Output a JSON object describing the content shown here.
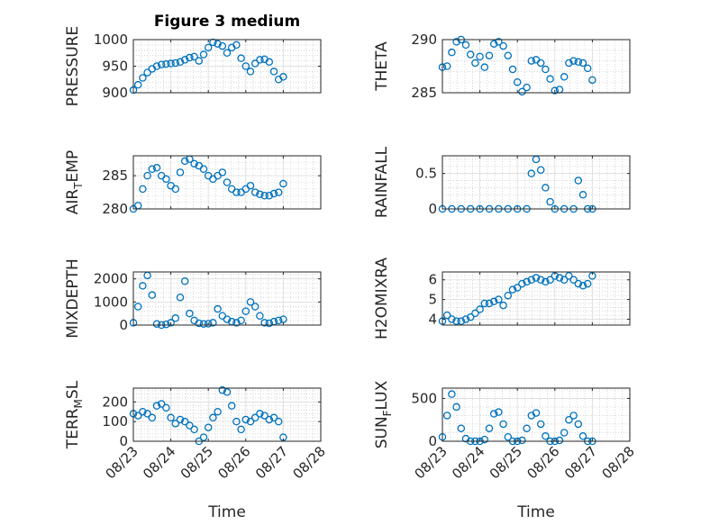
{
  "title": "Figure 3 medium",
  "xlabel": "Time",
  "x_ticks": [
    "08/23",
    "08/24",
    "08/25",
    "08/26",
    "08/27",
    "08/28"
  ],
  "colors": {
    "series": "#0072BD",
    "axis": "#262626",
    "grid": "#bfbfbf"
  },
  "chart_data": [
    {
      "type": "scatter",
      "ylabel": "PRESSURE",
      "ylim": [
        900,
        1000
      ],
      "yticks": [
        900,
        950,
        1000
      ],
      "xlim": [
        "08/23",
        "08/28"
      ],
      "grid": true,
      "x": [
        "08/23 00:00",
        "08/23 03:00",
        "08/23 06:00",
        "08/23 09:00",
        "08/23 12:00",
        "08/23 15:00",
        "08/23 18:00",
        "08/23 21:00",
        "08/24 00:00",
        "08/24 03:00",
        "08/24 06:00",
        "08/24 09:00",
        "08/24 12:00",
        "08/24 15:00",
        "08/24 18:00",
        "08/24 21:00",
        "08/25 00:00",
        "08/25 03:00",
        "08/25 06:00",
        "08/25 09:00",
        "08/25 12:00",
        "08/25 15:00",
        "08/25 18:00",
        "08/25 21:00",
        "08/26 00:00",
        "08/26 03:00",
        "08/26 06:00",
        "08/26 09:00",
        "08/26 12:00",
        "08/26 15:00",
        "08/26 18:00",
        "08/26 21:00",
        "08/27 00:00"
      ],
      "y": [
        905,
        915,
        928,
        938,
        945,
        950,
        953,
        954,
        955,
        956,
        958,
        962,
        966,
        968,
        960,
        972,
        985,
        995,
        992,
        988,
        975,
        985,
        990,
        965,
        950,
        940,
        955,
        962,
        963,
        958,
        940,
        925,
        930
      ]
    },
    {
      "type": "scatter",
      "ylabel": "THETA",
      "ylim": [
        285,
        290
      ],
      "yticks": [
        285,
        290
      ],
      "xlim": [
        "08/23",
        "08/28"
      ],
      "grid": true,
      "x": [
        "08/23 00:00",
        "08/23 03:00",
        "08/23 06:00",
        "08/23 09:00",
        "08/23 12:00",
        "08/23 15:00",
        "08/23 18:00",
        "08/23 21:00",
        "08/24 00:00",
        "08/24 03:00",
        "08/24 06:00",
        "08/24 09:00",
        "08/24 12:00",
        "08/24 15:00",
        "08/24 18:00",
        "08/24 21:00",
        "08/25 00:00",
        "08/25 03:00",
        "08/25 06:00",
        "08/25 09:00",
        "08/25 12:00",
        "08/25 15:00",
        "08/25 18:00",
        "08/25 21:00",
        "08/26 00:00",
        "08/26 03:00",
        "08/26 06:00",
        "08/26 09:00",
        "08/26 12:00",
        "08/26 15:00",
        "08/26 18:00",
        "08/26 21:00",
        "08/27 00:00"
      ],
      "y": [
        287.4,
        287.5,
        288.8,
        289.8,
        290,
        289.5,
        288.6,
        287.8,
        288.4,
        287.4,
        288.5,
        289.6,
        289.8,
        289.4,
        288.5,
        287.2,
        286,
        285.1,
        285.5,
        288,
        288.1,
        287.8,
        287.2,
        286.3,
        285.2,
        285.3,
        286.5,
        287.8,
        288,
        287.9,
        287.8,
        287.3,
        286.2
      ]
    },
    {
      "type": "scatter",
      "ylabel": "AIR_TEMP",
      "ylim": [
        280,
        288
      ],
      "yticks": [
        280,
        285
      ],
      "xlim": [
        "08/23",
        "08/28"
      ],
      "grid": true,
      "x": [
        "08/23 00:00",
        "08/23 03:00",
        "08/23 06:00",
        "08/23 09:00",
        "08/23 12:00",
        "08/23 15:00",
        "08/23 18:00",
        "08/23 21:00",
        "08/24 00:00",
        "08/24 03:00",
        "08/24 06:00",
        "08/24 09:00",
        "08/24 12:00",
        "08/24 15:00",
        "08/24 18:00",
        "08/24 21:00",
        "08/25 00:00",
        "08/25 03:00",
        "08/25 06:00",
        "08/25 09:00",
        "08/25 12:00",
        "08/25 15:00",
        "08/25 18:00",
        "08/25 21:00",
        "08/26 00:00",
        "08/26 03:00",
        "08/26 06:00",
        "08/26 09:00",
        "08/26 12:00",
        "08/26 15:00",
        "08/26 18:00",
        "08/26 21:00",
        "08/27 00:00"
      ],
      "y": [
        280,
        280.5,
        283,
        285,
        286,
        286.2,
        285,
        284.5,
        283.5,
        283,
        285.5,
        287.2,
        287.5,
        286.8,
        286.5,
        286,
        285,
        284.5,
        285,
        285.5,
        284,
        283,
        282.5,
        282.5,
        283,
        283.5,
        282.5,
        282.2,
        282,
        282,
        282.3,
        282.5,
        283.8
      ]
    },
    {
      "type": "scatter",
      "ylabel": "RAINFALL",
      "ylim": [
        0,
        0.75
      ],
      "yticks": [
        0,
        0.5
      ],
      "xlim": [
        "08/23",
        "08/28"
      ],
      "grid": true,
      "x": [
        "08/23 00:00",
        "08/23 06:00",
        "08/23 12:00",
        "08/23 18:00",
        "08/24 00:00",
        "08/24 06:00",
        "08/24 12:00",
        "08/24 18:00",
        "08/25 00:00",
        "08/25 06:00",
        "08/25 09:00",
        "08/25 12:00",
        "08/25 15:00",
        "08/25 18:00",
        "08/25 21:00",
        "08/26 00:00",
        "08/26 06:00",
        "08/26 12:00",
        "08/26 15:00",
        "08/26 18:00",
        "08/26 21:00",
        "08/27 00:00"
      ],
      "y": [
        0,
        0,
        0,
        0,
        0,
        0,
        0,
        0,
        0,
        0,
        0.5,
        0.7,
        0.55,
        0.3,
        0.1,
        0,
        0,
        0,
        0.4,
        0.2,
        0,
        0
      ]
    },
    {
      "type": "scatter",
      "ylabel": "MIXDEPTH",
      "ylim": [
        0,
        2300
      ],
      "yticks": [
        0,
        1000,
        2000
      ],
      "xlim": [
        "08/23",
        "08/28"
      ],
      "grid": true,
      "x": [
        "08/23 00:00",
        "08/23 03:00",
        "08/23 06:00",
        "08/23 09:00",
        "08/23 12:00",
        "08/23 15:00",
        "08/23 18:00",
        "08/23 21:00",
        "08/24 00:00",
        "08/24 03:00",
        "08/24 06:00",
        "08/24 09:00",
        "08/24 12:00",
        "08/24 15:00",
        "08/24 18:00",
        "08/24 21:00",
        "08/25 00:00",
        "08/25 03:00",
        "08/25 06:00",
        "08/25 09:00",
        "08/25 12:00",
        "08/25 15:00",
        "08/25 18:00",
        "08/25 21:00",
        "08/26 00:00",
        "08/26 03:00",
        "08/26 06:00",
        "08/26 09:00",
        "08/26 12:00",
        "08/26 15:00",
        "08/26 18:00",
        "08/26 21:00",
        "08/27 00:00"
      ],
      "y": [
        100,
        800,
        1700,
        2150,
        1300,
        50,
        0,
        30,
        100,
        300,
        1200,
        1900,
        500,
        200,
        80,
        50,
        60,
        100,
        700,
        400,
        250,
        150,
        100,
        200,
        600,
        1000,
        800,
        400,
        100,
        80,
        150,
        200,
        250
      ]
    },
    {
      "type": "scatter",
      "ylabel": "H2OMIXRA",
      "ylim": [
        3.7,
        6.4
      ],
      "yticks": [
        4,
        5,
        6
      ],
      "xlim": [
        "08/23",
        "08/28"
      ],
      "grid": true,
      "x": [
        "08/23 00:00",
        "08/23 03:00",
        "08/23 06:00",
        "08/23 09:00",
        "08/23 12:00",
        "08/23 15:00",
        "08/23 18:00",
        "08/23 21:00",
        "08/24 00:00",
        "08/24 03:00",
        "08/24 06:00",
        "08/24 09:00",
        "08/24 12:00",
        "08/24 15:00",
        "08/24 18:00",
        "08/24 21:00",
        "08/25 00:00",
        "08/25 03:00",
        "08/25 06:00",
        "08/25 09:00",
        "08/25 12:00",
        "08/25 15:00",
        "08/25 18:00",
        "08/25 21:00",
        "08/26 00:00",
        "08/26 03:00",
        "08/26 06:00",
        "08/26 09:00",
        "08/26 12:00",
        "08/26 15:00",
        "08/26 18:00",
        "08/26 21:00",
        "08/27 00:00"
      ],
      "y": [
        3.9,
        4.2,
        4,
        3.9,
        3.9,
        4,
        4.1,
        4.3,
        4.5,
        4.8,
        4.8,
        4.9,
        5,
        4.7,
        5.2,
        5.5,
        5.6,
        5.8,
        5.9,
        6,
        6.1,
        6,
        5.9,
        6,
        6.2,
        6.1,
        6,
        6.2,
        6,
        5.8,
        5.7,
        5.8,
        6.2
      ]
    },
    {
      "type": "scatter",
      "ylabel": "TERR_MSL",
      "ylim": [
        0,
        270
      ],
      "yticks": [
        0,
        100,
        200
      ],
      "xlim": [
        "08/23",
        "08/28"
      ],
      "grid": true,
      "x": [
        "08/23 00:00",
        "08/23 03:00",
        "08/23 06:00",
        "08/23 09:00",
        "08/23 12:00",
        "08/23 15:00",
        "08/23 18:00",
        "08/23 21:00",
        "08/24 00:00",
        "08/24 03:00",
        "08/24 06:00",
        "08/24 09:00",
        "08/24 12:00",
        "08/24 15:00",
        "08/24 18:00",
        "08/24 21:00",
        "08/25 00:00",
        "08/25 03:00",
        "08/25 06:00",
        "08/25 09:00",
        "08/25 12:00",
        "08/25 15:00",
        "08/25 18:00",
        "08/25 21:00",
        "08/26 00:00",
        "08/26 03:00",
        "08/26 06:00",
        "08/26 09:00",
        "08/26 12:00",
        "08/26 15:00",
        "08/26 18:00",
        "08/26 21:00",
        "08/27 00:00"
      ],
      "y": [
        140,
        130,
        150,
        140,
        120,
        180,
        190,
        170,
        120,
        90,
        110,
        100,
        80,
        60,
        0,
        20,
        70,
        120,
        150,
        260,
        250,
        180,
        100,
        60,
        110,
        100,
        120,
        140,
        130,
        110,
        120,
        100,
        20
      ]
    },
    {
      "type": "scatter",
      "ylabel": "SUN_FLUX",
      "ylim": [
        0,
        620
      ],
      "yticks": [
        0,
        500
      ],
      "xlim": [
        "08/23",
        "08/28"
      ],
      "grid": true,
      "x": [
        "08/23 00:00",
        "08/23 03:00",
        "08/23 06:00",
        "08/23 09:00",
        "08/23 12:00",
        "08/23 15:00",
        "08/23 18:00",
        "08/23 21:00",
        "08/24 00:00",
        "08/24 03:00",
        "08/24 06:00",
        "08/24 09:00",
        "08/24 12:00",
        "08/24 15:00",
        "08/24 18:00",
        "08/24 21:00",
        "08/25 00:00",
        "08/25 03:00",
        "08/25 06:00",
        "08/25 09:00",
        "08/25 12:00",
        "08/25 15:00",
        "08/25 18:00",
        "08/25 21:00",
        "08/26 00:00",
        "08/26 03:00",
        "08/26 06:00",
        "08/26 09:00",
        "08/26 12:00",
        "08/26 15:00",
        "08/26 18:00",
        "08/26 21:00",
        "08/27 00:00"
      ],
      "y": [
        50,
        300,
        550,
        400,
        150,
        30,
        0,
        0,
        0,
        20,
        150,
        320,
        340,
        200,
        50,
        0,
        0,
        10,
        150,
        300,
        330,
        200,
        60,
        0,
        0,
        10,
        100,
        250,
        300,
        200,
        60,
        0,
        0
      ]
    }
  ]
}
